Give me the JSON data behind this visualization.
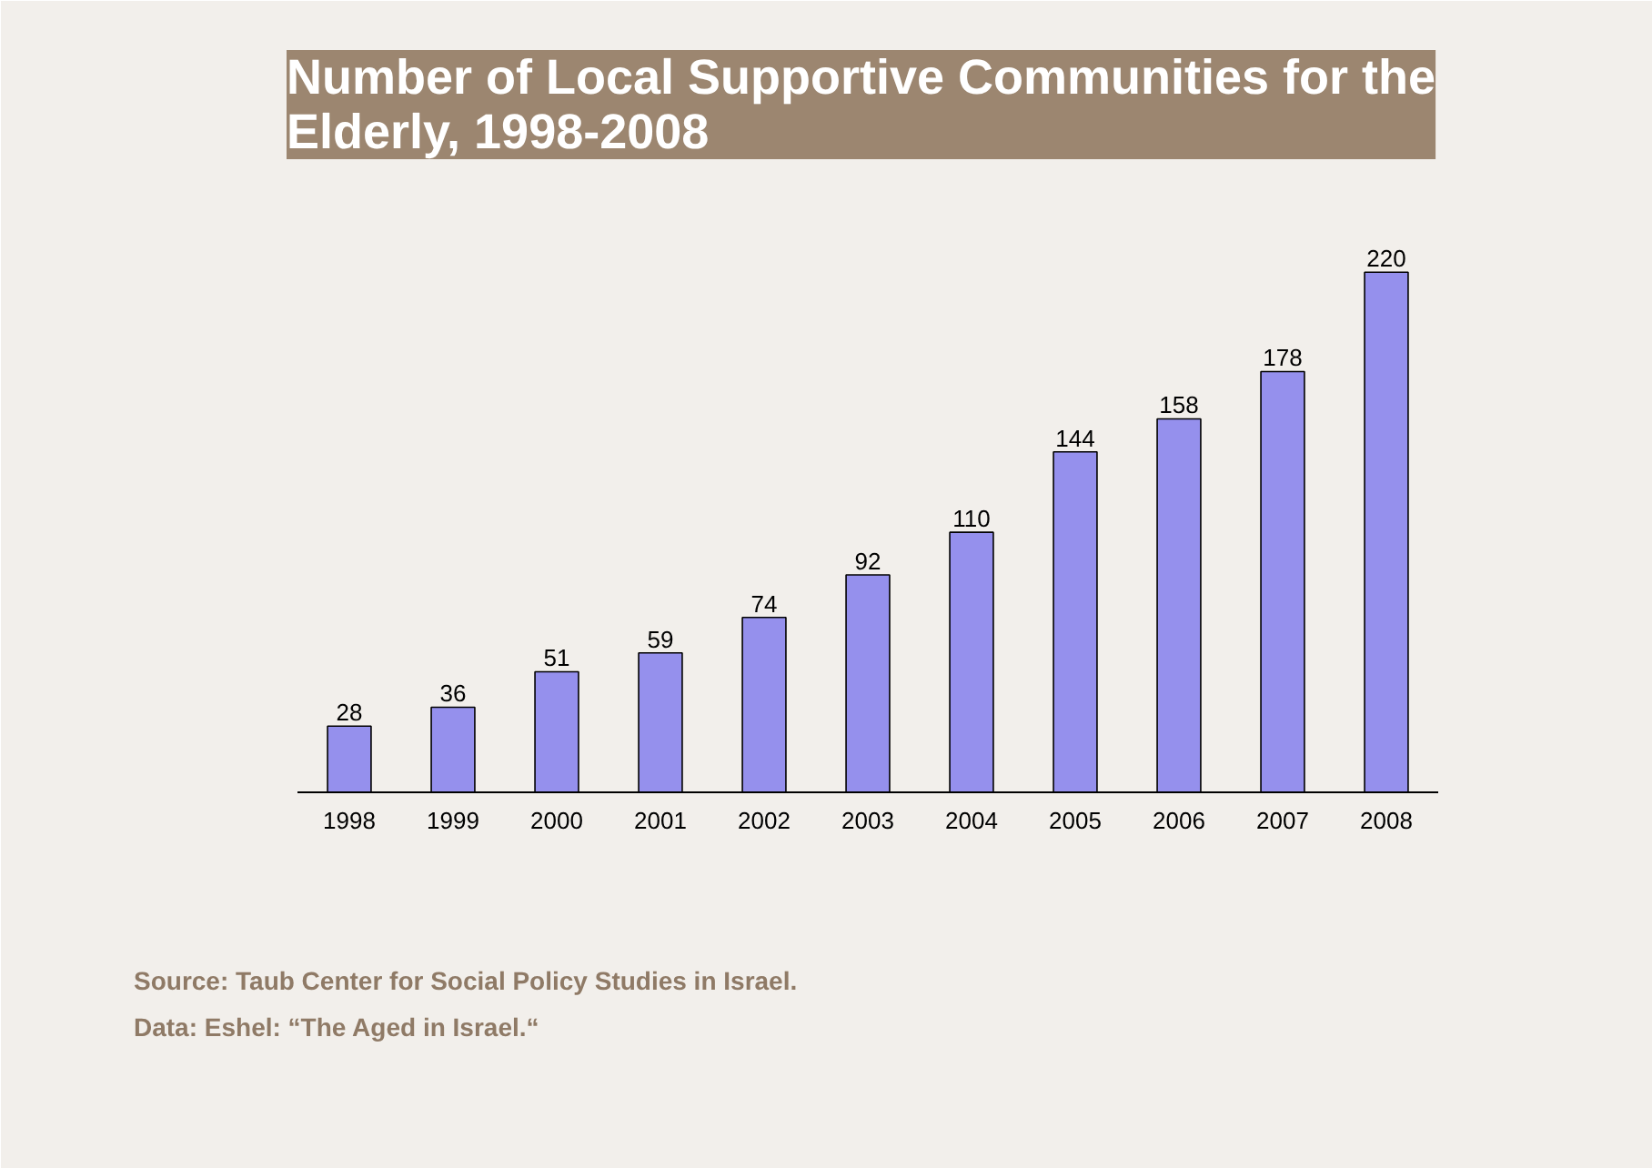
{
  "chart_data": {
    "type": "bar",
    "title": "Number of Local Supportive Communities for the Elderly, 1998-2008",
    "categories": [
      "1998",
      "1999",
      "2000",
      "2001",
      "2002",
      "2003",
      "2004",
      "2005",
      "2006",
      "2007",
      "2008"
    ],
    "values": [
      28,
      36,
      51,
      59,
      74,
      92,
      110,
      144,
      158,
      178,
      220
    ],
    "color": "#9590ed",
    "data_labels": true,
    "grid": false,
    "tick_labels": "x",
    "annotations": [
      "Source: Taub Center for Social Policy Studies in Israel.",
      "Data: Eshel: “The Aged in Israel.“"
    ]
  }
}
